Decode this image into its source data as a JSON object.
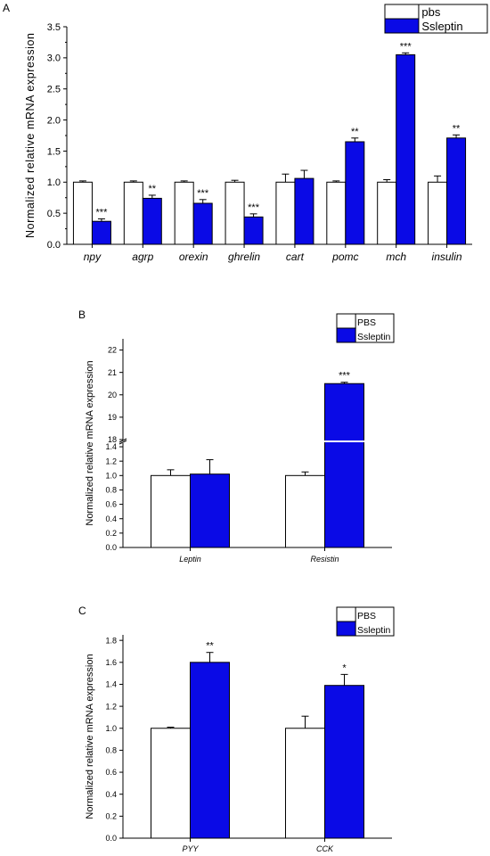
{
  "colors": {
    "control_fill": "#ffffff",
    "treatment_fill": "#0a0ae6",
    "axis": "#000000"
  },
  "chart_data": [
    {
      "panel": "A",
      "type": "bar",
      "ylabel": "Normalized relative mRNA expression",
      "xlabel": "",
      "ylim": [
        0,
        3.5
      ],
      "yticks": [
        "0.0",
        "0.5",
        "1.0",
        "1.5",
        "2.0",
        "2.5",
        "3.0",
        "3.5"
      ],
      "categories": [
        "npy",
        "agrp",
        "orexin",
        "ghrelin",
        "cart",
        "pomc",
        "mch",
        "insulin"
      ],
      "series": [
        {
          "name": "pbs",
          "values": [
            1.0,
            1.0,
            1.0,
            1.0,
            1.0,
            1.0,
            1.0,
            1.0
          ],
          "errors": [
            0.02,
            0.02,
            0.02,
            0.03,
            0.13,
            0.02,
            0.04,
            0.1
          ]
        },
        {
          "name": "Ssleptin",
          "values": [
            0.37,
            0.74,
            0.66,
            0.44,
            1.06,
            1.65,
            3.05,
            1.71
          ],
          "errors": [
            0.04,
            0.05,
            0.06,
            0.05,
            0.13,
            0.06,
            0.03,
            0.05
          ]
        }
      ],
      "significance": [
        "***",
        "**",
        "***",
        "***",
        "",
        "**",
        "***",
        "**"
      ],
      "legend_position": "top-right",
      "grid": false
    },
    {
      "panel": "B",
      "type": "bar",
      "ylabel": "Normalized relative mRNA expression",
      "xlabel": "",
      "axis_break": [
        1.45,
        18
      ],
      "ylim_lower": [
        0,
        1.45
      ],
      "ylim_upper": [
        18,
        22.5
      ],
      "yticks_lower": [
        "0.0",
        "0.2",
        "0.4",
        "0.6",
        "0.8",
        "1.0",
        "1.2",
        "1.4"
      ],
      "yticks_upper": [
        "18",
        "19",
        "20",
        "21",
        "22"
      ],
      "categories": [
        "Leptin",
        "Resistin"
      ],
      "series": [
        {
          "name": "PBS",
          "values": [
            1.0,
            1.0
          ],
          "errors": [
            0.08,
            0.05
          ]
        },
        {
          "name": "Ssleptin",
          "values": [
            1.02,
            20.5
          ],
          "errors": [
            0.2,
            0.06
          ]
        }
      ],
      "significance": [
        "",
        "***"
      ],
      "legend_position": "top-right",
      "grid": false
    },
    {
      "panel": "C",
      "type": "bar",
      "ylabel": "Normalized relative mRNA expression",
      "xlabel": "",
      "ylim": [
        0,
        1.85
      ],
      "yticks": [
        "0.0",
        "0.2",
        "0.4",
        "0.6",
        "0.8",
        "1.0",
        "1.2",
        "1.4",
        "1.6",
        "1.8"
      ],
      "categories": [
        "PYY",
        "CCK"
      ],
      "series": [
        {
          "name": "PBS",
          "values": [
            1.0,
            1.0
          ],
          "errors": [
            0.01,
            0.11
          ]
        },
        {
          "name": "Ssleptin",
          "values": [
            1.6,
            1.39
          ],
          "errors": [
            0.09,
            0.1
          ]
        }
      ],
      "significance": [
        "**",
        "*"
      ],
      "legend_position": "top-right",
      "grid": false
    }
  ]
}
